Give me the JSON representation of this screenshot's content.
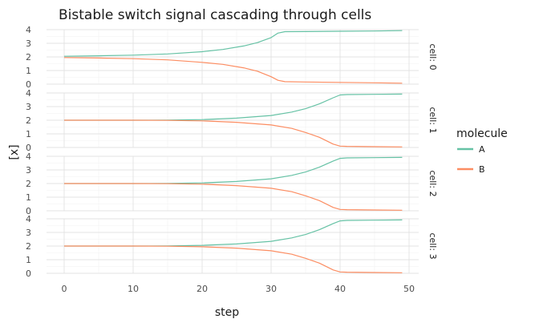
{
  "chart_data": {
    "type": "line",
    "title": "Bistable switch signal cascading through cells",
    "xlabel": "step",
    "ylabel": "[x]",
    "xlim": [
      0,
      49
    ],
    "ylim": [
      0,
      4
    ],
    "x_ticks": [
      0,
      10,
      20,
      30,
      40,
      50
    ],
    "y_ticks": [
      0,
      1,
      2,
      3,
      4
    ],
    "grid": true,
    "legend_title": "molecule",
    "legend_position": "right",
    "colors": {
      "A": "#66c2a5",
      "B": "#fc8d62"
    },
    "facets": [
      {
        "label": "cell: 0",
        "series": [
          {
            "name": "A",
            "x": [
              0,
              5,
              10,
              15,
              20,
              23,
              26,
              28,
              30,
              31,
              32,
              35,
              40,
              45,
              49
            ],
            "y": [
              2.05,
              2.08,
              2.13,
              2.22,
              2.38,
              2.55,
              2.8,
              3.05,
              3.42,
              3.75,
              3.85,
              3.86,
              3.88,
              3.9,
              3.93
            ]
          },
          {
            "name": "B",
            "x": [
              0,
              5,
              10,
              15,
              20,
              23,
              26,
              28,
              30,
              31,
              32,
              35,
              40,
              45,
              49
            ],
            "y": [
              1.95,
              1.92,
              1.87,
              1.78,
              1.6,
              1.45,
              1.2,
              0.95,
              0.55,
              0.28,
              0.18,
              0.16,
              0.13,
              0.1,
              0.07
            ]
          }
        ]
      },
      {
        "label": "cell: 1",
        "series": [
          {
            "name": "A",
            "x": [
              0,
              10,
              15,
              20,
              25,
              30,
              33,
              35,
              37,
              39,
              40,
              41,
              45,
              49
            ],
            "y": [
              2,
              2,
              2.01,
              2.05,
              2.15,
              2.35,
              2.6,
              2.85,
              3.2,
              3.65,
              3.85,
              3.88,
              3.9,
              3.92
            ]
          },
          {
            "name": "B",
            "x": [
              0,
              10,
              15,
              20,
              25,
              30,
              33,
              35,
              37,
              39,
              40,
              41,
              45,
              49
            ],
            "y": [
              2,
              2,
              1.99,
              1.95,
              1.85,
              1.65,
              1.4,
              1.1,
              0.75,
              0.25,
              0.1,
              0.08,
              0.06,
              0.04
            ]
          }
        ]
      },
      {
        "label": "cell: 2",
        "series": [
          {
            "name": "A",
            "x": [
              0,
              10,
              15,
              20,
              25,
              30,
              33,
              35,
              37,
              39,
              40,
              41,
              45,
              49
            ],
            "y": [
              2,
              2,
              2.01,
              2.05,
              2.15,
              2.35,
              2.6,
              2.85,
              3.2,
              3.65,
              3.85,
              3.88,
              3.9,
              3.92
            ]
          },
          {
            "name": "B",
            "x": [
              0,
              10,
              15,
              20,
              25,
              30,
              33,
              35,
              37,
              39,
              40,
              41,
              45,
              49
            ],
            "y": [
              2,
              2,
              1.99,
              1.95,
              1.85,
              1.65,
              1.4,
              1.1,
              0.75,
              0.25,
              0.1,
              0.08,
              0.06,
              0.04
            ]
          }
        ]
      },
      {
        "label": "cell: 3",
        "series": [
          {
            "name": "A",
            "x": [
              0,
              10,
              15,
              20,
              25,
              30,
              33,
              35,
              37,
              39,
              40,
              41,
              45,
              49
            ],
            "y": [
              2,
              2,
              2.01,
              2.05,
              2.15,
              2.35,
              2.6,
              2.85,
              3.2,
              3.65,
              3.85,
              3.88,
              3.9,
              3.92
            ]
          },
          {
            "name": "B",
            "x": [
              0,
              10,
              15,
              20,
              25,
              30,
              33,
              35,
              37,
              39,
              40,
              41,
              45,
              49
            ],
            "y": [
              2,
              2,
              1.99,
              1.95,
              1.85,
              1.65,
              1.4,
              1.1,
              0.75,
              0.25,
              0.1,
              0.08,
              0.06,
              0.04
            ]
          }
        ]
      }
    ]
  }
}
